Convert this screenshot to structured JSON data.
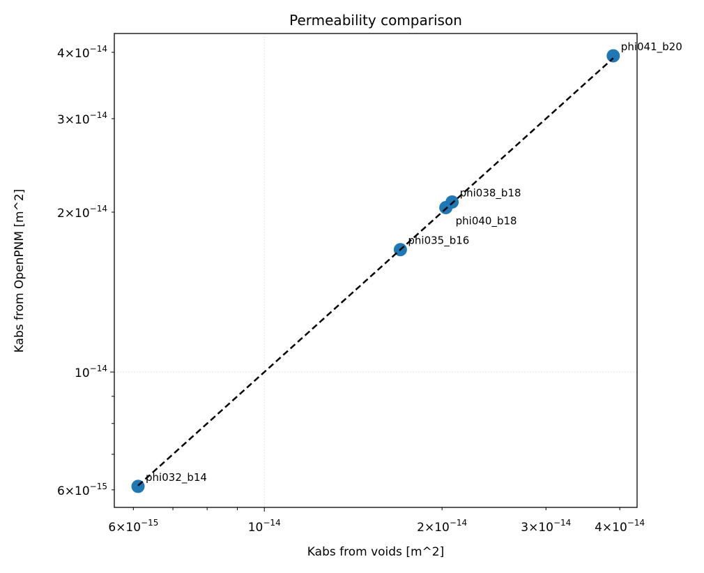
{
  "chart_data": {
    "type": "scatter",
    "title": "Permeability comparison",
    "xlabel": "Kabs from voids [m^2]",
    "ylabel": "Kabs from OpenPNM [m^2]",
    "xscale": "log",
    "yscale": "log",
    "xlim": [
      5.57e-15,
      4.28e-14
    ],
    "ylim": [
      5.56e-15,
      4.34e-14
    ],
    "grid": "major, dotted, light gray",
    "marker_color": "#1f77b4",
    "reference_line": {
      "style": "dashed",
      "color": "#000000",
      "x": [
        6.11e-15,
        3.9e-14
      ],
      "y": [
        6.11e-15,
        3.9e-14
      ]
    },
    "x_ticks": [
      {
        "value": 6e-15,
        "mant": "6",
        "exp": "−15"
      },
      {
        "value": 1e-14,
        "mant": "",
        "exp": "−14"
      },
      {
        "value": 2e-14,
        "mant": "2",
        "exp": "−14"
      },
      {
        "value": 3e-14,
        "mant": "3",
        "exp": "−14"
      },
      {
        "value": 4e-14,
        "mant": "4",
        "exp": "−14"
      }
    ],
    "y_ticks": [
      {
        "value": 6e-15,
        "mant": "6",
        "exp": "−15"
      },
      {
        "value": 1e-14,
        "mant": "",
        "exp": "−14"
      },
      {
        "value": 2e-14,
        "mant": "2",
        "exp": "−14"
      },
      {
        "value": 3e-14,
        "mant": "3",
        "exp": "−14"
      },
      {
        "value": 4e-14,
        "mant": "4",
        "exp": "−14"
      }
    ],
    "minor_ticks": [
      7e-15,
      8e-15,
      9e-15
    ],
    "points": [
      {
        "label": "phi032_b14",
        "x": 6.11e-15,
        "y": 6.09e-15
      },
      {
        "label": "phi035_b16",
        "x": 1.7e-14,
        "y": 1.7e-14
      },
      {
        "label": "phi040_b18",
        "x": 2.03e-14,
        "y": 2.04e-14
      },
      {
        "label": "phi038_b18",
        "x": 2.08e-14,
        "y": 2.09e-14
      },
      {
        "label": "phi041_b20",
        "x": 3.9e-14,
        "y": 3.94e-14
      }
    ]
  }
}
